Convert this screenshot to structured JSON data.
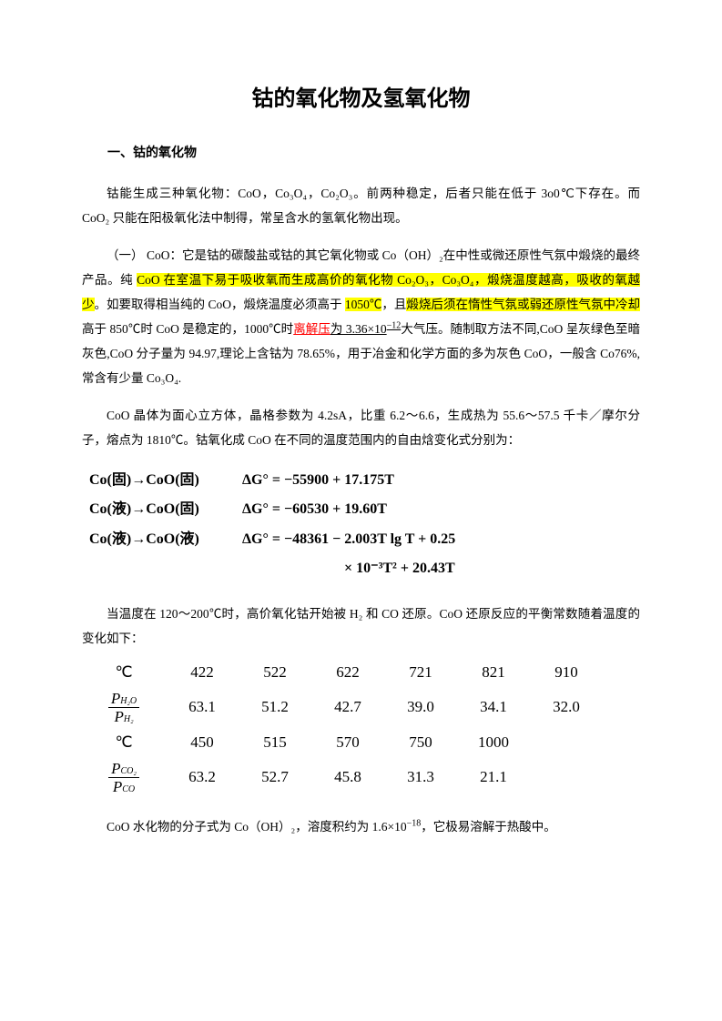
{
  "title": "钴的氧化物及氢氧化物",
  "section1_heading": "一、钴的氧化物",
  "para1": "钴能生成三种氧化物：CoO，Co₃O₄，Co₂O₃。前两种稳定，后者只能在低于 3o0℃下存在。而 CoO₂ 只能在阳极氧化法中制得，常呈含水的氢氧化物出现。",
  "para2_lead": "（一） CoO：它是钴的碳酸盐或钴的其它氧化物或 Co（OH）₂在中性或微还原性气氛中煅烧的最终产品。纯 ",
  "para2_hl1": "CoO 在室温下易于吸收氧而生成高价的氧化物 Co₂O₃，Co₃O₄，煅烧温度越高，吸收的氧越少",
  "para2_mid": "。如要取得相当纯的 CoO，煅烧温度必须高于 ",
  "para2_hl2": "1050℃",
  "para2_mid2": "，且",
  "para2_hl3": "煅烧后须在惰性气氛或弱还原性气氛中冷却",
  "para2_mid3": "高于 850℃时 CoO 是稳定的，1000℃时",
  "para2_red": "离解压",
  "para2_mid4": "为 3.36×10",
  "para2_sup": "−12",
  "para2_tail": "大气压。随制取方法不同,CoO 呈灰绿色至暗灰色,CoO 分子量为 94.97,理论上含钴为 78.65%，用于冶金和化学方面的多为灰色 CoO，一般含 Co76%,常含有少量 Co₃O₄.",
  "para3": "CoO 晶体为面心立方体，晶格参数为 4.2sA，比重 6.2～6.6，生成热为 55.6～57.5 千卡／摩尔分子，熔点为 1810℃。钴氧化成 CoO 在不同的温度范围内的自由焓变化式分别为：",
  "eq1_left": "Co(固)→CoO(固)",
  "eq1_right": "ΔG° = −55900 + 17.175T",
  "eq2_left": "Co(液)→CoO(固)",
  "eq2_right": "ΔG° = −60530 + 19.60T",
  "eq3_left": "Co(液)→CoO(液)",
  "eq3_right": "ΔG° = −48361 − 2.003T lg T + 0.25",
  "eq3_cont": "× 10⁻³T² + 20.43T",
  "para4": "当温度在 120～200℃时，高价氧化钴开始被 H₂ 和 CO 还原。CoO 还原反应的平衡常数随着温度的变化如下：",
  "table": {
    "row1_label": "℃",
    "row1_vals": [
      "422",
      "522",
      "622",
      "721",
      "821",
      "910"
    ],
    "row2_num": "P",
    "row2_num_sub": "H₂O",
    "row2_den": "P",
    "row2_den_sub": "H₂",
    "row2_vals": [
      "63.1",
      "51.2",
      "42.7",
      "39.0",
      "34.1",
      "32.0"
    ],
    "row3_label": "℃",
    "row3_vals": [
      "450",
      "515",
      "570",
      "750",
      "1000",
      ""
    ],
    "row4_num": "P",
    "row4_num_sub": "CO₂",
    "row4_den": "P",
    "row4_den_sub": "CO",
    "row4_vals": [
      "63.2",
      "52.7",
      "45.8",
      "31.3",
      "21.1",
      ""
    ]
  },
  "para5_a": "CoO 水化物的分子式为 Co（OH）₂，溶度积约为 1.6×10",
  "para5_sup": "−18",
  "para5_b": "，它极易溶解于热酸中。",
  "colors": {
    "highlight": "#ffff00",
    "red": "#ff0000",
    "text": "#000000",
    "background": "#ffffff"
  }
}
